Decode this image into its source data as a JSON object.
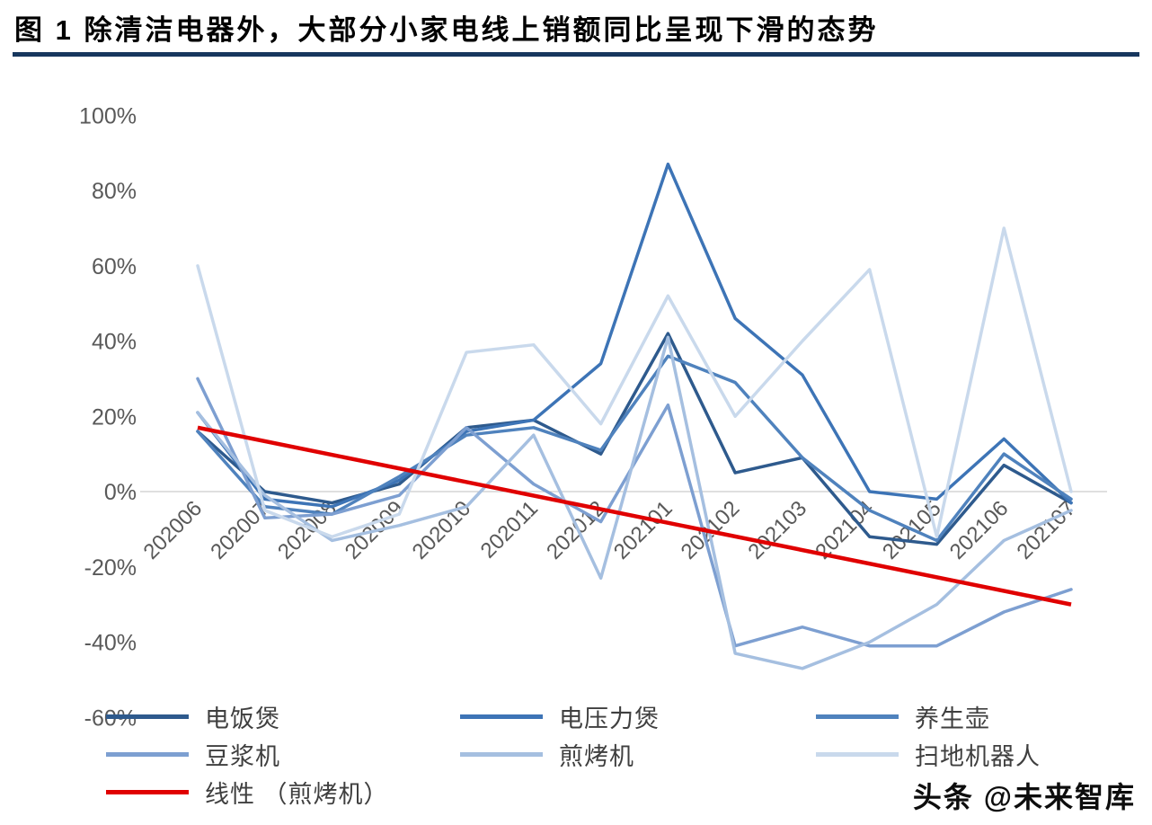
{
  "header": {
    "title": "图 1 除清洁电器外，大部分小家电线上销额同比呈现下滑的态势"
  },
  "watermark": "头条 @未来智库",
  "colors": {
    "title_rule": "#17375e",
    "axis_text": "#595959",
    "gridline": "#bfbfbf",
    "legend_text": "#3f3f3f",
    "trend": "#e00000"
  },
  "chart_data": {
    "type": "line",
    "title": "",
    "xlabel": "",
    "ylabel": "",
    "ylim": [
      -60,
      100
    ],
    "yticks_percent": [
      100,
      80,
      60,
      40,
      20,
      0,
      -20,
      -40,
      -60
    ],
    "grid": "zero-line-only",
    "legend_position": "bottom",
    "x_categories": [
      "202006",
      "202007",
      "202008",
      "202009",
      "202010",
      "202011",
      "202012",
      "202101",
      "202102",
      "202103",
      "202104",
      "202105",
      "202106",
      "202107"
    ],
    "series": [
      {
        "id": "rice-cooker",
        "name": "电饭煲",
        "color": "#2e5a8d",
        "values": [
          16,
          0,
          -3,
          2,
          17,
          19,
          10,
          42,
          5,
          9,
          -12,
          -14,
          7,
          -3
        ]
      },
      {
        "id": "pressure-cooker",
        "name": "电压力煲",
        "color": "#3d74b6",
        "values": [
          21,
          -2,
          -4,
          3,
          16,
          19,
          34,
          87,
          46,
          31,
          0,
          -2,
          14,
          -3
        ]
      },
      {
        "id": "health-pot",
        "name": "养生壶",
        "color": "#4f82bd",
        "values": [
          16,
          -4,
          -6,
          4,
          15,
          17,
          11,
          36,
          29,
          9,
          -5,
          -13,
          10,
          -2
        ]
      },
      {
        "id": "soymilk-maker",
        "name": "豆浆机",
        "color": "#7d9fd1",
        "values": [
          30,
          -7,
          -6,
          -1,
          17,
          2,
          -8,
          23,
          -41,
          -36,
          -41,
          -41,
          -32,
          -26
        ]
      },
      {
        "id": "grill-machine",
        "name": "煎烤机",
        "color": "#a5bfe0",
        "values": [
          21,
          -1,
          -13,
          -9,
          -4,
          15,
          -23,
          41,
          -43,
          -47,
          -40,
          -30,
          -13,
          -5
        ]
      },
      {
        "id": "robot-vacuum",
        "name": "扫地机器人",
        "color": "#c9d9ec",
        "values": [
          60,
          -5,
          -12,
          -6,
          37,
          39,
          18,
          52,
          20,
          40,
          59,
          -12,
          70,
          0
        ]
      }
    ],
    "trend": {
      "id": "linear-grill-machine",
      "name": "线性 （煎烤机）",
      "color": "#e00000",
      "start": 17,
      "end": -30
    }
  }
}
